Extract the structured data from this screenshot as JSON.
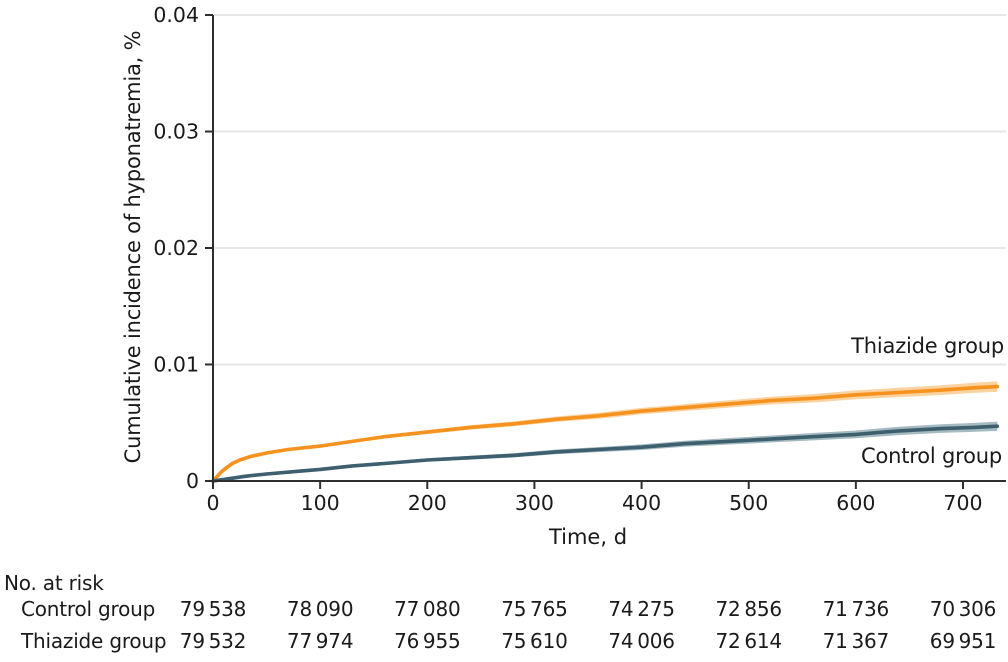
{
  "chart_data": {
    "type": "line",
    "title": "",
    "xlabel": "Time, d",
    "ylabel": "Cumulative incidence of hyponatremia, %",
    "xlim": [
      0,
      740
    ],
    "ylim": [
      0,
      0.04
    ],
    "xticks": [
      0,
      100,
      200,
      300,
      400,
      500,
      600,
      700
    ],
    "yticks": [
      0,
      0.01,
      0.02,
      0.03,
      0.04
    ],
    "ytick_labels": [
      "0",
      "0.01",
      "0.02",
      "0.03",
      "0.04"
    ],
    "grid": "horizontal-light",
    "legend_position": "inline-right",
    "colors": {
      "axis": "#2e2e2e",
      "grid": "#e6e6e6",
      "text": "#1a1a1a"
    },
    "series": [
      {
        "name": "Thiazide group",
        "label": "Thiazide group",
        "color": "#f6921e",
        "band_color": "#fbd2a0",
        "band_halfwidth_start": 6e-05,
        "band_halfwidth_end": 0.00045,
        "points": [
          [
            0,
            0
          ],
          [
            4,
            0.0004
          ],
          [
            8,
            0.0008
          ],
          [
            12,
            0.0011
          ],
          [
            18,
            0.0015
          ],
          [
            25,
            0.0018
          ],
          [
            35,
            0.0021
          ],
          [
            50,
            0.0024
          ],
          [
            70,
            0.0027
          ],
          [
            100,
            0.003
          ],
          [
            130,
            0.0034
          ],
          [
            160,
            0.0038
          ],
          [
            200,
            0.0042
          ],
          [
            240,
            0.0046
          ],
          [
            280,
            0.0049
          ],
          [
            320,
            0.0053
          ],
          [
            360,
            0.0056
          ],
          [
            400,
            0.006
          ],
          [
            440,
            0.0063
          ],
          [
            480,
            0.0066
          ],
          [
            520,
            0.0069
          ],
          [
            560,
            0.0071
          ],
          [
            600,
            0.0074
          ],
          [
            640,
            0.0076
          ],
          [
            680,
            0.0078
          ],
          [
            710,
            0.008
          ],
          [
            732,
            0.0081
          ]
        ]
      },
      {
        "name": "Control group",
        "label": "Control group",
        "color": "#3d5f6e",
        "band_color": "#a6bac2",
        "band_halfwidth_start": 5e-05,
        "band_halfwidth_end": 0.0004,
        "points": [
          [
            0,
            0
          ],
          [
            15,
            0.0002
          ],
          [
            30,
            0.0004
          ],
          [
            50,
            0.0006
          ],
          [
            75,
            0.0008
          ],
          [
            100,
            0.001
          ],
          [
            130,
            0.0013
          ],
          [
            160,
            0.0015
          ],
          [
            200,
            0.0018
          ],
          [
            240,
            0.002
          ],
          [
            280,
            0.0022
          ],
          [
            320,
            0.0025
          ],
          [
            360,
            0.0027
          ],
          [
            400,
            0.0029
          ],
          [
            440,
            0.0032
          ],
          [
            480,
            0.0034
          ],
          [
            520,
            0.0036
          ],
          [
            560,
            0.0038
          ],
          [
            600,
            0.004
          ],
          [
            640,
            0.0043
          ],
          [
            680,
            0.0045
          ],
          [
            710,
            0.0046
          ],
          [
            732,
            0.0047
          ]
        ]
      }
    ]
  },
  "risk_table": {
    "title": "No. at risk",
    "time_points": [
      0,
      100,
      200,
      300,
      400,
      500,
      600,
      700
    ],
    "rows": [
      {
        "label": "Control group",
        "values": [
          "79 538",
          "78 090",
          "77 080",
          "75 765",
          "74 275",
          "72 856",
          "71 736",
          "70 306"
        ]
      },
      {
        "label": "Thiazide group",
        "values": [
          "79 532",
          "77 974",
          "76 955",
          "75 610",
          "74 006",
          "72 614",
          "71 367",
          "69 951"
        ]
      }
    ]
  }
}
